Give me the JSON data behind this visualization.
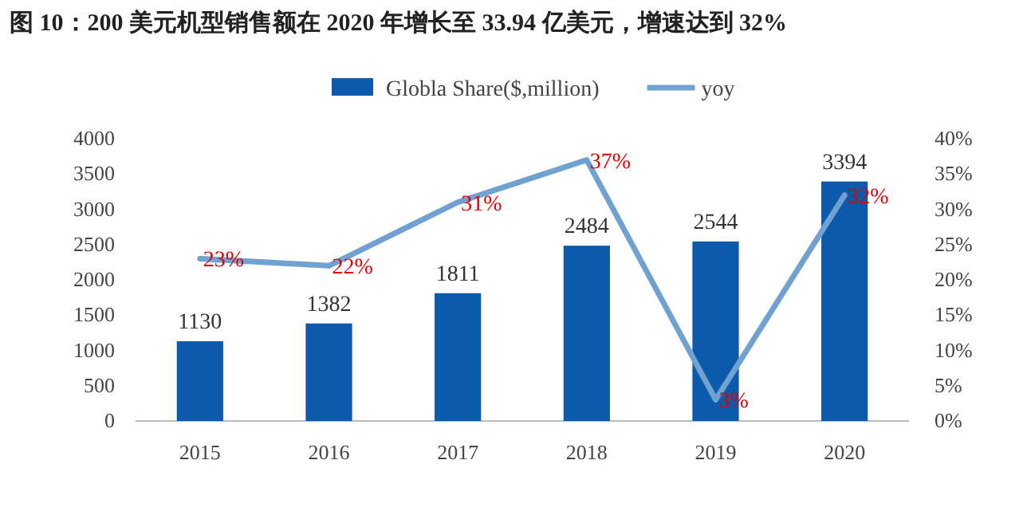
{
  "chart_data": {
    "type": "bar",
    "title": "图 10：200 美元机型销售额在 2020 年增长至 33.94 亿美元，增速达到 32%",
    "categories": [
      "2015",
      "2016",
      "2017",
      "2018",
      "2019",
      "2020"
    ],
    "series": [
      {
        "name": "Globla Share($,million)",
        "color": "#0b5aab",
        "values": [
          1130,
          1382,
          1811,
          2484,
          2544,
          3394
        ]
      },
      {
        "name": "yoy",
        "type": "line",
        "axis": "y2",
        "color": "#6fa1d1",
        "values": [
          23,
          22,
          31,
          37,
          3,
          32
        ],
        "value_labels": [
          "23%",
          "22%",
          "31%",
          "37%",
          "3%",
          "32%"
        ]
      }
    ],
    "data_labels": true,
    "legend": "top",
    "ylim": [
      0,
      4000
    ],
    "yticks": [
      0,
      500,
      1000,
      1500,
      2000,
      2500,
      3000,
      3500,
      4000
    ],
    "y2lim": [
      0,
      40
    ],
    "y2ticks": [
      {
        "value": 0,
        "label": "0%"
      },
      {
        "value": 5,
        "label": "5%"
      },
      {
        "value": 10,
        "label": "10%"
      },
      {
        "value": 15,
        "label": "15%"
      },
      {
        "value": 20,
        "label": "20%"
      },
      {
        "value": 25,
        "label": "25%"
      },
      {
        "value": 30,
        "label": "30%"
      },
      {
        "value": 35,
        "label": "35%"
      },
      {
        "value": 40,
        "label": "40%"
      }
    ]
  }
}
